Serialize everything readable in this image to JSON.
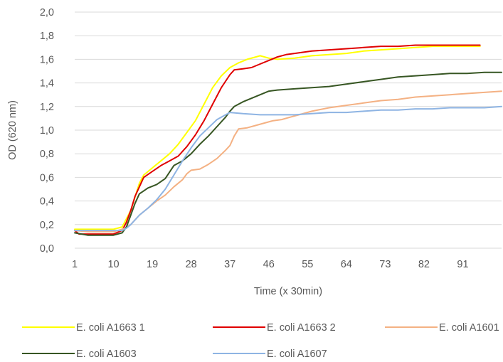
{
  "chart_data": {
    "type": "line",
    "title": "",
    "xlabel": "Time (x 30min)",
    "ylabel": "OD  (620 nm)",
    "xlim": [
      1,
      100
    ],
    "ylim": [
      0,
      2.0
    ],
    "x_ticks": [
      1,
      10,
      19,
      28,
      37,
      46,
      55,
      64,
      73,
      82,
      91
    ],
    "x_tick_labels": [
      "1",
      "10",
      "19",
      "28",
      "37",
      "46",
      "55",
      "64",
      "73",
      "82",
      "91"
    ],
    "y_ticks": [
      0,
      0.2,
      0.4,
      0.6,
      0.8,
      1.0,
      1.2,
      1.4,
      1.6,
      1.8,
      2.0
    ],
    "y_tick_labels": [
      "0,0",
      "0,2",
      "0,4",
      "0,6",
      "0,8",
      "1,0",
      "1,2",
      "1,4",
      "1,6",
      "1,8",
      "2,0"
    ],
    "grid": "horizontal",
    "legend_position": "bottom",
    "series": [
      {
        "name": "E. coli A1663 1",
        "color": "#FFFF00",
        "points": [
          [
            1,
            0.16
          ],
          [
            4,
            0.16
          ],
          [
            7,
            0.16
          ],
          [
            10,
            0.16
          ],
          [
            12,
            0.18
          ],
          [
            14,
            0.32
          ],
          [
            16,
            0.55
          ],
          [
            17,
            0.62
          ],
          [
            19,
            0.68
          ],
          [
            21,
            0.74
          ],
          [
            23,
            0.8
          ],
          [
            25,
            0.88
          ],
          [
            27,
            0.98
          ],
          [
            29,
            1.08
          ],
          [
            31,
            1.22
          ],
          [
            33,
            1.36
          ],
          [
            35,
            1.46
          ],
          [
            37,
            1.53
          ],
          [
            39,
            1.57
          ],
          [
            41,
            1.6
          ],
          [
            43,
            1.62
          ],
          [
            44,
            1.63
          ],
          [
            46,
            1.61
          ],
          [
            48,
            1.6
          ],
          [
            52,
            1.61
          ],
          [
            56,
            1.63
          ],
          [
            60,
            1.64
          ],
          [
            64,
            1.65
          ],
          [
            68,
            1.67
          ],
          [
            72,
            1.68
          ],
          [
            76,
            1.69
          ],
          [
            80,
            1.7
          ],
          [
            84,
            1.71
          ],
          [
            88,
            1.71
          ],
          [
            92,
            1.71
          ],
          [
            95,
            1.71
          ]
        ]
      },
      {
        "name": "E. coli A1663 2",
        "color": "#E00000",
        "points": [
          [
            1,
            0.15
          ],
          [
            2,
            0.12
          ],
          [
            4,
            0.12
          ],
          [
            7,
            0.12
          ],
          [
            10,
            0.12
          ],
          [
            12,
            0.15
          ],
          [
            13,
            0.22
          ],
          [
            14,
            0.32
          ],
          [
            15,
            0.44
          ],
          [
            16,
            0.52
          ],
          [
            17,
            0.6
          ],
          [
            19,
            0.65
          ],
          [
            21,
            0.7
          ],
          [
            23,
            0.74
          ],
          [
            25,
            0.78
          ],
          [
            27,
            0.86
          ],
          [
            29,
            0.96
          ],
          [
            31,
            1.08
          ],
          [
            33,
            1.22
          ],
          [
            35,
            1.36
          ],
          [
            37,
            1.47
          ],
          [
            38,
            1.51
          ],
          [
            40,
            1.52
          ],
          [
            42,
            1.53
          ],
          [
            44,
            1.56
          ],
          [
            46,
            1.59
          ],
          [
            48,
            1.62
          ],
          [
            50,
            1.64
          ],
          [
            52,
            1.65
          ],
          [
            56,
            1.67
          ],
          [
            60,
            1.68
          ],
          [
            64,
            1.69
          ],
          [
            68,
            1.7
          ],
          [
            72,
            1.71
          ],
          [
            76,
            1.71
          ],
          [
            80,
            1.72
          ],
          [
            84,
            1.72
          ],
          [
            88,
            1.72
          ],
          [
            92,
            1.72
          ],
          [
            95,
            1.72
          ]
        ]
      },
      {
        "name": "E. coli A1601",
        "color": "#F4B183",
        "points": [
          [
            1,
            0.15
          ],
          [
            4,
            0.14
          ],
          [
            7,
            0.14
          ],
          [
            10,
            0.14
          ],
          [
            12,
            0.16
          ],
          [
            14,
            0.2
          ],
          [
            16,
            0.28
          ],
          [
            18,
            0.34
          ],
          [
            20,
            0.4
          ],
          [
            22,
            0.45
          ],
          [
            24,
            0.52
          ],
          [
            26,
            0.58
          ],
          [
            27,
            0.63
          ],
          [
            28,
            0.66
          ],
          [
            30,
            0.67
          ],
          [
            32,
            0.71
          ],
          [
            34,
            0.76
          ],
          [
            36,
            0.83
          ],
          [
            37,
            0.87
          ],
          [
            38,
            0.95
          ],
          [
            39,
            1.01
          ],
          [
            41,
            1.02
          ],
          [
            43,
            1.04
          ],
          [
            45,
            1.06
          ],
          [
            47,
            1.08
          ],
          [
            49,
            1.09
          ],
          [
            51,
            1.11
          ],
          [
            53,
            1.13
          ],
          [
            56,
            1.16
          ],
          [
            60,
            1.19
          ],
          [
            64,
            1.21
          ],
          [
            68,
            1.23
          ],
          [
            72,
            1.25
          ],
          [
            76,
            1.26
          ],
          [
            80,
            1.28
          ],
          [
            84,
            1.29
          ],
          [
            88,
            1.3
          ],
          [
            92,
            1.31
          ],
          [
            96,
            1.32
          ],
          [
            100,
            1.33
          ]
        ]
      },
      {
        "name": "E. coli A1603",
        "color": "#375623",
        "points": [
          [
            1,
            0.13
          ],
          [
            4,
            0.11
          ],
          [
            7,
            0.11
          ],
          [
            10,
            0.11
          ],
          [
            12,
            0.13
          ],
          [
            13,
            0.18
          ],
          [
            14,
            0.28
          ],
          [
            15,
            0.38
          ],
          [
            16,
            0.46
          ],
          [
            18,
            0.51
          ],
          [
            20,
            0.54
          ],
          [
            22,
            0.59
          ],
          [
            24,
            0.7
          ],
          [
            26,
            0.74
          ],
          [
            28,
            0.8
          ],
          [
            30,
            0.88
          ],
          [
            32,
            0.95
          ],
          [
            34,
            1.03
          ],
          [
            36,
            1.11
          ],
          [
            37,
            1.16
          ],
          [
            38,
            1.2
          ],
          [
            40,
            1.24
          ],
          [
            42,
            1.27
          ],
          [
            44,
            1.3
          ],
          [
            46,
            1.33
          ],
          [
            48,
            1.34
          ],
          [
            52,
            1.35
          ],
          [
            56,
            1.36
          ],
          [
            60,
            1.37
          ],
          [
            64,
            1.39
          ],
          [
            68,
            1.41
          ],
          [
            72,
            1.43
          ],
          [
            76,
            1.45
          ],
          [
            80,
            1.46
          ],
          [
            84,
            1.47
          ],
          [
            88,
            1.48
          ],
          [
            92,
            1.48
          ],
          [
            96,
            1.49
          ],
          [
            100,
            1.49
          ]
        ]
      },
      {
        "name": "E. coli A1607",
        "color": "#8EB4E3",
        "points": [
          [
            1,
            0.15
          ],
          [
            4,
            0.15
          ],
          [
            7,
            0.15
          ],
          [
            10,
            0.15
          ],
          [
            12,
            0.15
          ],
          [
            13,
            0.17
          ],
          [
            14,
            0.2
          ],
          [
            16,
            0.28
          ],
          [
            18,
            0.34
          ],
          [
            20,
            0.41
          ],
          [
            22,
            0.5
          ],
          [
            24,
            0.62
          ],
          [
            26,
            0.74
          ],
          [
            28,
            0.85
          ],
          [
            30,
            0.95
          ],
          [
            32,
            1.02
          ],
          [
            34,
            1.09
          ],
          [
            36,
            1.13
          ],
          [
            37,
            1.15
          ],
          [
            40,
            1.14
          ],
          [
            44,
            1.13
          ],
          [
            48,
            1.13
          ],
          [
            52,
            1.13
          ],
          [
            56,
            1.14
          ],
          [
            60,
            1.15
          ],
          [
            64,
            1.15
          ],
          [
            68,
            1.16
          ],
          [
            72,
            1.17
          ],
          [
            76,
            1.17
          ],
          [
            80,
            1.18
          ],
          [
            84,
            1.18
          ],
          [
            88,
            1.19
          ],
          [
            92,
            1.19
          ],
          [
            96,
            1.19
          ],
          [
            100,
            1.2
          ]
        ]
      }
    ]
  }
}
